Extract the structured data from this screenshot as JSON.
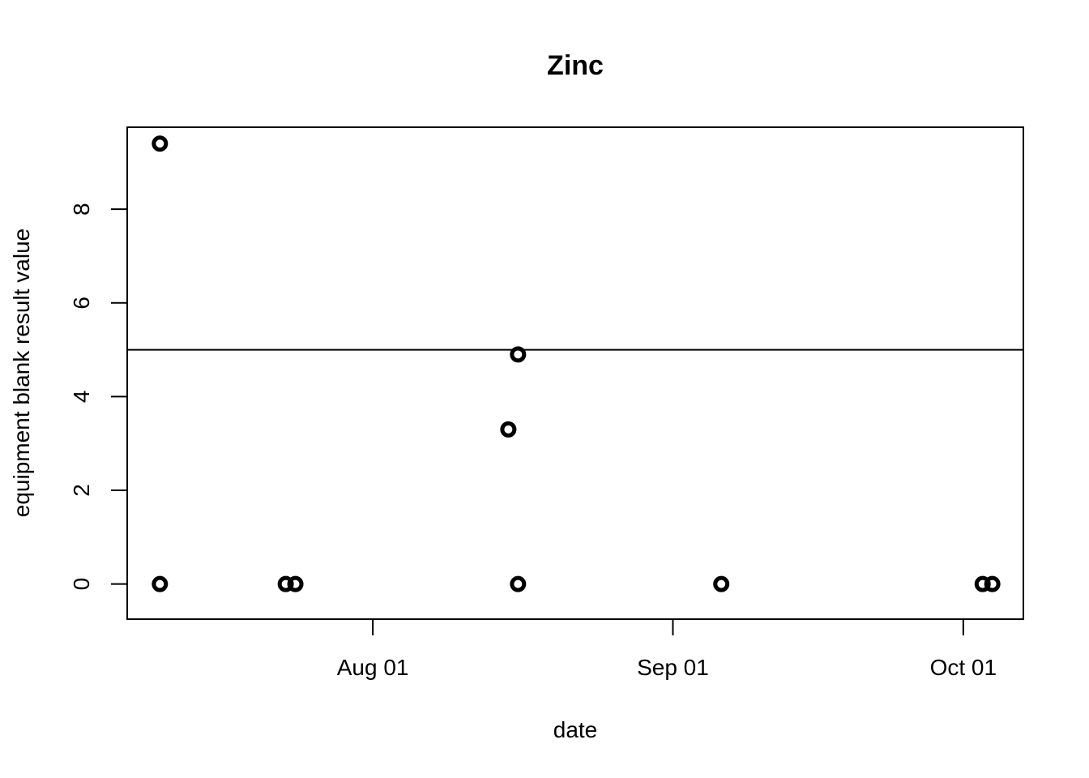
{
  "chart_data": {
    "type": "scatter",
    "title": "Zinc",
    "xlabel": "date",
    "ylabel": "equipment blank result value",
    "x_ticks": [
      {
        "date": "2022-08-01",
        "label": "Aug 01"
      },
      {
        "date": "2022-09-01",
        "label": "Sep 01"
      },
      {
        "date": "2022-10-01",
        "label": "Oct 01"
      }
    ],
    "y_ticks": [
      0,
      2,
      4,
      6,
      8
    ],
    "xlim": [
      "2022-07-06T15:00",
      "2022-10-07T05:00"
    ],
    "ylim": [
      -0.75,
      9.75
    ],
    "grid": false,
    "reference_line": {
      "y": 5
    },
    "points": [
      {
        "x": "2022-07-10",
        "y": 9.4
      },
      {
        "x": "2022-07-10",
        "y": 0
      },
      {
        "x": "2022-07-23",
        "y": 0
      },
      {
        "x": "2022-07-24",
        "y": 0
      },
      {
        "x": "2022-08-15",
        "y": 3.3
      },
      {
        "x": "2022-08-16",
        "y": 4.9
      },
      {
        "x": "2022-08-16",
        "y": 0
      },
      {
        "x": "2022-09-06",
        "y": 0
      },
      {
        "x": "2022-10-03",
        "y": 0
      },
      {
        "x": "2022-10-04",
        "y": 0
      }
    ]
  }
}
